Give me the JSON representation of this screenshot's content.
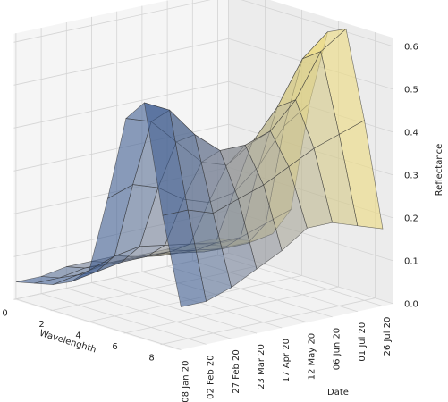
{
  "chart_data": {
    "type": "surface3d",
    "x_label": "Wavelenghth",
    "y_label": "Date",
    "z_label": "Reflectance",
    "xlim": [
      0,
      9
    ],
    "xticks": [
      0,
      2,
      4,
      6,
      8
    ],
    "y": [
      "08 Jan 20",
      "02 Feb 20",
      "27 Feb 20",
      "23 Mar 20",
      "17 Apr 20",
      "12 May 20",
      "06 Jun 20",
      "01 Jul 20",
      "26 Jul 20"
    ],
    "zlim": [
      0,
      0.62
    ],
    "zticks": [
      {
        "value": 0,
        "label": "0.0"
      },
      0.1,
      0.2,
      0.3,
      0.4,
      0.5,
      0.6
    ],
    "x": [
      0,
      1,
      2,
      3,
      4,
      5,
      6,
      7,
      8,
      9
    ],
    "z": [
      [
        0.04,
        0.05,
        0.06,
        0.08,
        0.12,
        0.3,
        0.5,
        0.55,
        0.3,
        0.1
      ],
      [
        0.04,
        0.05,
        0.07,
        0.09,
        0.14,
        0.32,
        0.48,
        0.52,
        0.3,
        0.1
      ],
      [
        0.05,
        0.06,
        0.08,
        0.1,
        0.15,
        0.3,
        0.42,
        0.45,
        0.28,
        0.12
      ],
      [
        0.05,
        0.06,
        0.08,
        0.1,
        0.14,
        0.26,
        0.36,
        0.4,
        0.3,
        0.15
      ],
      [
        0.05,
        0.06,
        0.08,
        0.1,
        0.13,
        0.24,
        0.34,
        0.4,
        0.32,
        0.18
      ],
      [
        0.04,
        0.05,
        0.07,
        0.09,
        0.12,
        0.25,
        0.38,
        0.42,
        0.35,
        0.22
      ],
      [
        0.04,
        0.05,
        0.06,
        0.08,
        0.12,
        0.3,
        0.45,
        0.48,
        0.38,
        0.22
      ],
      [
        0.04,
        0.05,
        0.06,
        0.08,
        0.14,
        0.38,
        0.55,
        0.58,
        0.4,
        0.2
      ],
      [
        0.04,
        0.05,
        0.06,
        0.09,
        0.16,
        0.42,
        0.6,
        0.62,
        0.42,
        0.18
      ]
    ],
    "colormap": [
      "#33558f",
      "#9c9c9c",
      "#f7e47a"
    ],
    "grid": true
  }
}
